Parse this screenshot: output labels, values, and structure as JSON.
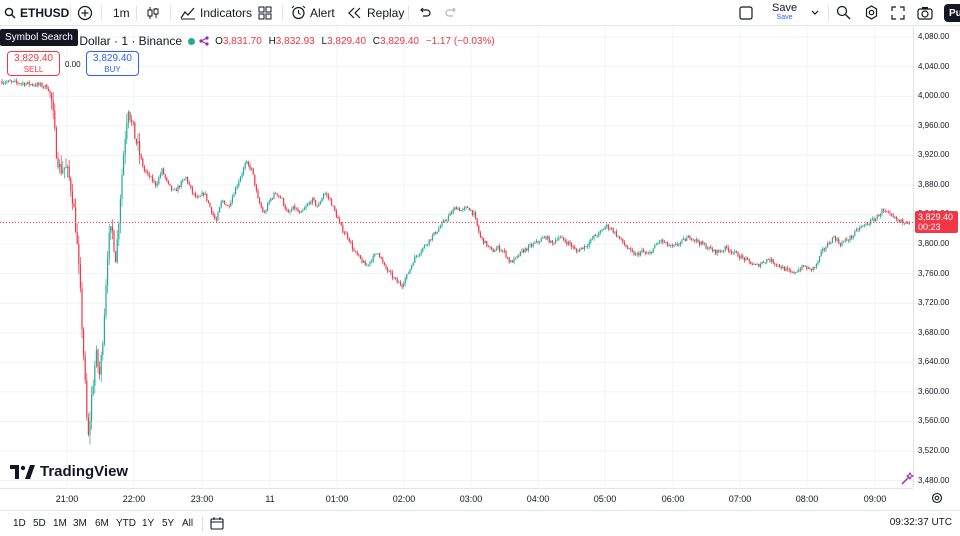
{
  "toolbar": {
    "symbol": "ETHUSD",
    "interval": "1m",
    "indicators": "Indicators",
    "alert": "Alert",
    "replay": "Replay",
    "save": "Save",
    "save_sub": "Save",
    "publish": "Pu"
  },
  "tooltip": "Symbol Search",
  "legend": {
    "title": "/ U.S. Dollar · 1 · Binance",
    "o_label": "O",
    "o": "3,831.70",
    "h_label": "H",
    "h": "3,832.93",
    "l_label": "L",
    "l": "3,829.40",
    "c_label": "C",
    "c": "3,829.40",
    "change": "−1.17 (−0.03%)"
  },
  "trade": {
    "sell_price": "3,829.40",
    "sell_label": "SELL",
    "spread": "0.00",
    "buy_price": "3,829.40",
    "buy_label": "BUY"
  },
  "price_scale": [
    "4,080.00",
    "4,040.00",
    "4,000.00",
    "3,960.00",
    "3,920.00",
    "3,880.00",
    "3,840.00",
    "3,800.00",
    "3,760.00",
    "3,720.00",
    "3,680.00",
    "3,640.00",
    "3,600.00",
    "3,560.00",
    "3,520.00",
    "3,480.00"
  ],
  "current_price": {
    "price": "3,829.40",
    "countdown": "00:23"
  },
  "time_axis": [
    "21:00",
    "22:00",
    "23:00",
    "11",
    "01:00",
    "02:00",
    "03:00",
    "04:00",
    "05:00",
    "06:00",
    "07:00",
    "08:00",
    "09:00"
  ],
  "ranges": [
    "1D",
    "5D",
    "1M",
    "3M",
    "6M",
    "YTD",
    "1Y",
    "5Y",
    "All"
  ],
  "clock": "09:32:37 UTC",
  "brand": "TradingView",
  "colors": {
    "up": "#22ab94",
    "down": "#f23645",
    "grid": "#f0f3fa",
    "accent": "#2962ff"
  },
  "chart_data": {
    "type": "candlestick",
    "ylim": [
      3470,
      4095
    ],
    "close_path": [
      [
        0,
        4020
      ],
      [
        20,
        4018
      ],
      [
        40,
        4015
      ],
      [
        48,
        4012
      ],
      [
        52,
        3990
      ],
      [
        56,
        3930
      ],
      [
        60,
        3900
      ],
      [
        64,
        3905
      ],
      [
        68,
        3895
      ],
      [
        72,
        3870
      ],
      [
        76,
        3820
      ],
      [
        80,
        3740
      ],
      [
        84,
        3640
      ],
      [
        88,
        3530
      ],
      [
        92,
        3600
      ],
      [
        96,
        3650
      ],
      [
        100,
        3620
      ],
      [
        104,
        3700
      ],
      [
        108,
        3800
      ],
      [
        112,
        3820
      ],
      [
        116,
        3780
      ],
      [
        120,
        3860
      ],
      [
        124,
        3930
      ],
      [
        128,
        3990
      ],
      [
        132,
        3960
      ],
      [
        136,
        3940
      ],
      [
        140,
        3920
      ],
      [
        144,
        3900
      ],
      [
        150,
        3890
      ],
      [
        156,
        3880
      ],
      [
        162,
        3900
      ],
      [
        168,
        3880
      ],
      [
        174,
        3870
      ],
      [
        180,
        3880
      ],
      [
        186,
        3890
      ],
      [
        192,
        3870
      ],
      [
        198,
        3860
      ],
      [
        204,
        3870
      ],
      [
        210,
        3850
      ],
      [
        216,
        3830
      ],
      [
        222,
        3860
      ],
      [
        228,
        3850
      ],
      [
        234,
        3870
      ],
      [
        240,
        3890
      ],
      [
        246,
        3910
      ],
      [
        252,
        3900
      ],
      [
        258,
        3860
      ],
      [
        264,
        3840
      ],
      [
        270,
        3860
      ],
      [
        276,
        3870
      ],
      [
        282,
        3860
      ],
      [
        288,
        3840
      ],
      [
        294,
        3850
      ],
      [
        300,
        3840
      ],
      [
        306,
        3850
      ],
      [
        312,
        3860
      ],
      [
        318,
        3850
      ],
      [
        324,
        3870
      ],
      [
        330,
        3860
      ],
      [
        336,
        3840
      ],
      [
        342,
        3820
      ],
      [
        348,
        3810
      ],
      [
        354,
        3790
      ],
      [
        360,
        3780
      ],
      [
        366,
        3770
      ],
      [
        372,
        3780
      ],
      [
        378,
        3790
      ],
      [
        384,
        3770
      ],
      [
        390,
        3760
      ],
      [
        396,
        3750
      ],
      [
        402,
        3745
      ],
      [
        408,
        3760
      ],
      [
        414,
        3780
      ],
      [
        420,
        3790
      ],
      [
        426,
        3800
      ],
      [
        432,
        3810
      ],
      [
        438,
        3820
      ],
      [
        444,
        3830
      ],
      [
        450,
        3840
      ],
      [
        456,
        3850
      ],
      [
        462,
        3845
      ],
      [
        468,
        3850
      ],
      [
        474,
        3840
      ],
      [
        480,
        3810
      ],
      [
        486,
        3800
      ],
      [
        492,
        3790
      ],
      [
        498,
        3795
      ],
      [
        504,
        3790
      ],
      [
        510,
        3775
      ],
      [
        516,
        3780
      ],
      [
        522,
        3790
      ],
      [
        528,
        3795
      ],
      [
        534,
        3800
      ],
      [
        540,
        3805
      ],
      [
        546,
        3810
      ],
      [
        552,
        3800
      ],
      [
        558,
        3810
      ],
      [
        564,
        3805
      ],
      [
        570,
        3800
      ],
      [
        576,
        3790
      ],
      [
        582,
        3795
      ],
      [
        588,
        3800
      ],
      [
        594,
        3810
      ],
      [
        600,
        3815
      ],
      [
        606,
        3825
      ],
      [
        612,
        3820
      ],
      [
        618,
        3810
      ],
      [
        624,
        3800
      ],
      [
        630,
        3790
      ],
      [
        636,
        3785
      ],
      [
        642,
        3790
      ],
      [
        648,
        3785
      ],
      [
        654,
        3795
      ],
      [
        660,
        3805
      ],
      [
        666,
        3800
      ],
      [
        672,
        3795
      ],
      [
        678,
        3800
      ],
      [
        684,
        3805
      ],
      [
        690,
        3810
      ],
      [
        696,
        3805
      ],
      [
        702,
        3800
      ],
      [
        708,
        3795
      ],
      [
        714,
        3790
      ],
      [
        720,
        3790
      ],
      [
        726,
        3795
      ],
      [
        732,
        3790
      ],
      [
        738,
        3785
      ],
      [
        744,
        3780
      ],
      [
        750,
        3775
      ],
      [
        756,
        3770
      ],
      [
        762,
        3775
      ],
      [
        768,
        3780
      ],
      [
        774,
        3775
      ],
      [
        780,
        3770
      ],
      [
        786,
        3765
      ],
      [
        792,
        3760
      ],
      [
        798,
        3765
      ],
      [
        804,
        3770
      ],
      [
        810,
        3765
      ],
      [
        816,
        3770
      ],
      [
        822,
        3790
      ],
      [
        828,
        3800
      ],
      [
        834,
        3810
      ],
      [
        840,
        3800
      ],
      [
        846,
        3805
      ],
      [
        852,
        3810
      ],
      [
        858,
        3820
      ],
      [
        864,
        3825
      ],
      [
        870,
        3830
      ],
      [
        876,
        3835
      ],
      [
        882,
        3845
      ],
      [
        888,
        3840
      ],
      [
        894,
        3835
      ],
      [
        900,
        3830
      ],
      [
        906,
        3832
      ],
      [
        910,
        3829.4
      ]
    ]
  }
}
